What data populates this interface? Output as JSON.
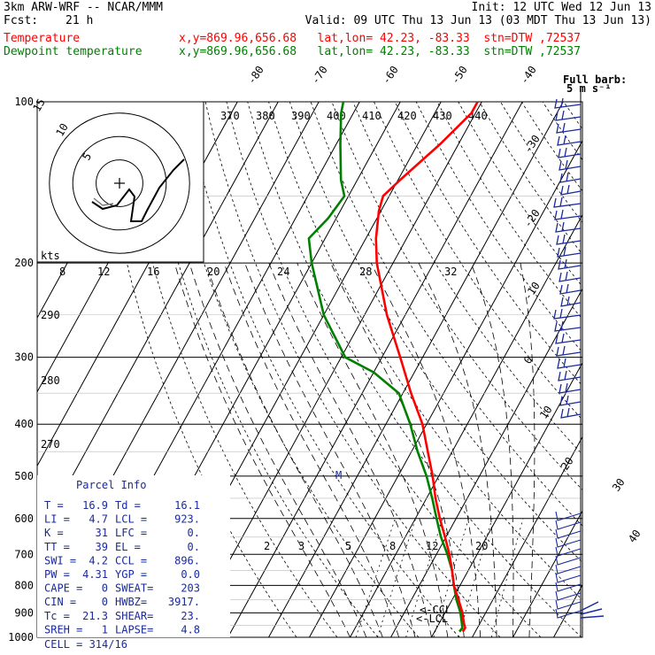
{
  "header": {
    "model": "3km ARW-WRF -- NCAR/MMM",
    "init": "Init: 12 UTC Wed 12 Jun 13",
    "fcst_label": "Fcst:",
    "fcst_value": "21 h",
    "valid": "Valid: 09 UTC Thu 13 Jun 13 (03 MDT Thu 13 Jun 13)",
    "temperature_label": "Temperature",
    "dewpoint_label": "Dewpoint temperature",
    "location": "x,y=869.96,656.68   lat,lon= 42.23, -83.33  stn=DTW ,72537"
  },
  "colors": {
    "temperature": "#ff0000",
    "dewpoint": "#008000",
    "wind_barbs": "#1a2a9e",
    "parcel_text": "#1a2a9e"
  },
  "chart_data": {
    "type": "line",
    "subtype": "skew-T log-p sounding",
    "y_scale": "log",
    "ylim": [
      1000,
      100
    ],
    "pressure_ticks": [
      "100",
      "200",
      "300",
      "400",
      "500",
      "600",
      "700",
      "800",
      "900",
      "1000"
    ],
    "isotherm_labels": [
      "-80",
      "-70",
      "-60",
      "-50",
      "-40",
      "-30",
      "-20",
      "-10",
      "0",
      "10",
      "20",
      "30",
      "40"
    ],
    "theta_labels": [
      "370",
      "380",
      "390",
      "400",
      "410",
      "420",
      "430",
      "440"
    ],
    "theta_e_labels": [
      "290",
      "280",
      "270"
    ],
    "mixing_ratio_top_labels": [
      "8",
      "12",
      "16",
      "20",
      "24",
      "28",
      "32"
    ],
    "mixing_ratio_labels": [
      "2",
      "3",
      "5",
      "8",
      "12",
      "20"
    ],
    "series": [
      {
        "name": "Temperature",
        "pressure": [
          976,
          960,
          940,
          900,
          850,
          800,
          750,
          700,
          650,
          600,
          550,
          500,
          450,
          400,
          350,
          300,
          250,
          200,
          180,
          160,
          150,
          140,
          120,
          105,
          100
        ],
        "temp_c": [
          16.9,
          17.0,
          16.0,
          14.3,
          11.5,
          8.5,
          6.0,
          3.2,
          -0.2,
          -4.0,
          -7.8,
          -11.5,
          -16.0,
          -21.0,
          -28.0,
          -35.5,
          -44.5,
          -54.0,
          -57.5,
          -60.5,
          -61.5,
          -59.5,
          -54.5,
          -51.0,
          -51.0
        ]
      },
      {
        "name": "Dewpoint temperature",
        "pressure": [
          976,
          960,
          940,
          900,
          850,
          800,
          750,
          700,
          650,
          600,
          550,
          500,
          450,
          400,
          350,
          320,
          300,
          250,
          200,
          180,
          165,
          150,
          140,
          120,
          105,
          100
        ],
        "temp_c": [
          16.1,
          16.3,
          15.5,
          13.8,
          11.0,
          8.5,
          6.0,
          2.7,
          -1.2,
          -4.8,
          -8.6,
          -13.0,
          -18.5,
          -24.0,
          -31.0,
          -40.0,
          -49.0,
          -60.0,
          -70.0,
          -74.0,
          -72.0,
          -71.0,
          -74.0,
          -79.0,
          -83.0,
          -84.0
        ]
      }
    ],
    "markers": {
      "lcl": "<-LCL",
      "ccl": "<-CCL",
      "m": "M"
    },
    "hodograph": {
      "ring_labels": [
        "5",
        "10",
        "15"
      ],
      "unit": "kts"
    },
    "wind_barb_key": "Full barb:\n 5 m s⁻¹"
  },
  "parcel_info": {
    "title": "Parcel Info",
    "rows": [
      [
        "T  =",
        "16.9",
        "Td =",
        "16.1"
      ],
      [
        "LI =",
        "4.7",
        "LCL =",
        "923."
      ],
      [
        "K  =",
        "31",
        "LFC =",
        "0."
      ],
      [
        "TT =",
        "39",
        "EL =",
        "0."
      ],
      [
        "SWI =",
        "4.2",
        "CCL =",
        "896."
      ],
      [
        "PW =",
        "4.31",
        "YGP =",
        "0.0"
      ],
      [
        "CAPE =",
        "0",
        "SWEAT=",
        "203"
      ],
      [
        "CIN =",
        "0",
        "HWBZ=",
        "3917."
      ],
      [
        "Tc =",
        "21.3",
        "SHEAR=",
        "23."
      ],
      [
        "SREH =",
        "1",
        "LAPSE=",
        "4.8"
      ]
    ],
    "cell": "CELL = 314/16"
  }
}
